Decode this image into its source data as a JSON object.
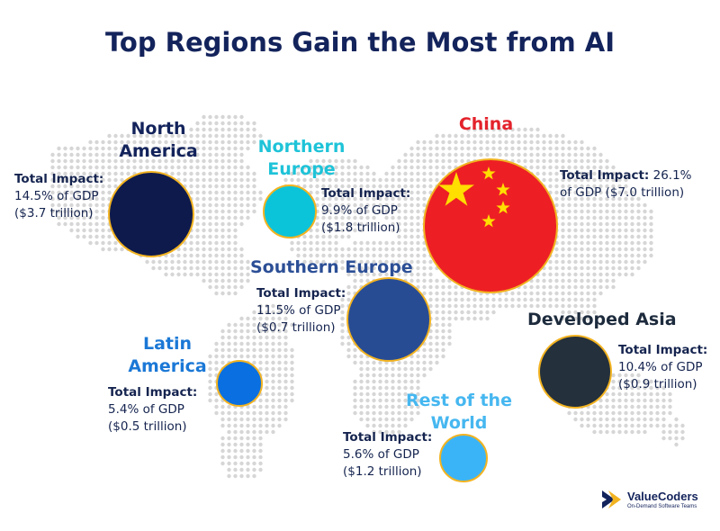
{
  "title": "Top Regions Gain the Most from AI",
  "impact_label": "Total Impact:",
  "colors": {
    "title": "#13235b",
    "bubble_border": "#f2b321",
    "map_dots": "#d6d6d6"
  },
  "regions": [
    {
      "name_line1": "North",
      "name_line2": "America",
      "name_color": "#13235b",
      "gdp": "14.5% of GDP",
      "value": "($3.7 trillion)",
      "bubble_color": "#0e1a4c"
    },
    {
      "name_line1": "Northern",
      "name_line2": "Europe",
      "name_color": "#1ec3d8",
      "gdp": "9.9% of GDP",
      "value": "($1.8 trillion)",
      "bubble_color": "#0bc4da"
    },
    {
      "name_line1": "China",
      "name_line2": "",
      "name_color": "#e3222b",
      "gdp": "26.1%",
      "gdp_line2": "of GDP ($7.0 trillion)",
      "bubble_color": "#ed1f24"
    },
    {
      "name_line1": "Southern Europe",
      "name_line2": "",
      "name_color": "#2c4f96",
      "gdp": "11.5% of GDP",
      "value": "($0.7 trillion)",
      "bubble_color": "#284c93"
    },
    {
      "name_line1": "Latin",
      "name_line2": "America",
      "name_color": "#1b78d6",
      "gdp": "5.4% of GDP",
      "value": "($0.5 trillion)",
      "bubble_color": "#0a6fe0"
    },
    {
      "name_line1": "Developed Asia",
      "name_line2": "",
      "name_color": "#1d2b3d",
      "gdp": "10.4% of GDP",
      "value": "($0.9 trillion)",
      "bubble_color": "#24303b"
    },
    {
      "name_line1": "Rest of the",
      "name_line2": "World",
      "name_color": "#46b7f0",
      "gdp": "5.6% of GDP",
      "value": "($1.2 trillion)",
      "bubble_color": "#3ab4f7"
    }
  ],
  "logo": {
    "name": "ValueCoders",
    "tagline": "On-Demand Software Teams"
  }
}
